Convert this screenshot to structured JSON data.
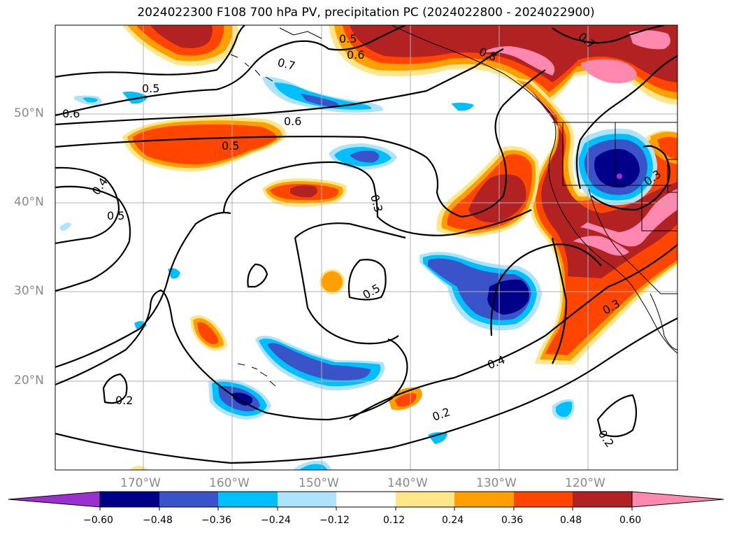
{
  "title": "2024022300 F108 700 hPa PV, precipitation PC (2024022800 - 2024022900)",
  "lon_labels": [
    "170°W",
    "160°W",
    "150°W",
    "140°W",
    "130°W",
    "120°W"
  ],
  "lat_labels": [
    "50°N",
    "40°N",
    "30°N",
    "20°N"
  ],
  "contour_labels": [
    "0.5",
    "0.6",
    "0.7",
    "0.8",
    "0.5",
    "0.6",
    "0.6",
    "0.5",
    "0.4",
    "0.5",
    "0.3",
    "0.5",
    "0.4",
    "0.3",
    "0.2",
    "0.2",
    "0.2",
    "0.3",
    "0.7"
  ],
  "colorbar": {
    "ticks": [
      "−0.60",
      "−0.48",
      "−0.36",
      "−0.24",
      "−0.12",
      "0.12",
      "0.24",
      "0.36",
      "0.48",
      "0.60"
    ],
    "colors": [
      "#9b30d0",
      "#00008b",
      "#3a53c8",
      "#00bfff",
      "#aee4fb",
      "#ffffff",
      "#ffe68a",
      "#ffa000",
      "#ff4500",
      "#b22222",
      "#ff88b0"
    ]
  },
  "colors": {
    "light_yellow": "#ffe68a",
    "orange": "#ffa000",
    "red_orange": "#ff4500",
    "dark_red": "#b22222",
    "pink": "#ff88b0",
    "light_blue": "#aee4fb",
    "sky_blue": "#00bfff",
    "mid_blue": "#3a53c8",
    "navy": "#00008b",
    "purple": "#9b30d0"
  }
}
